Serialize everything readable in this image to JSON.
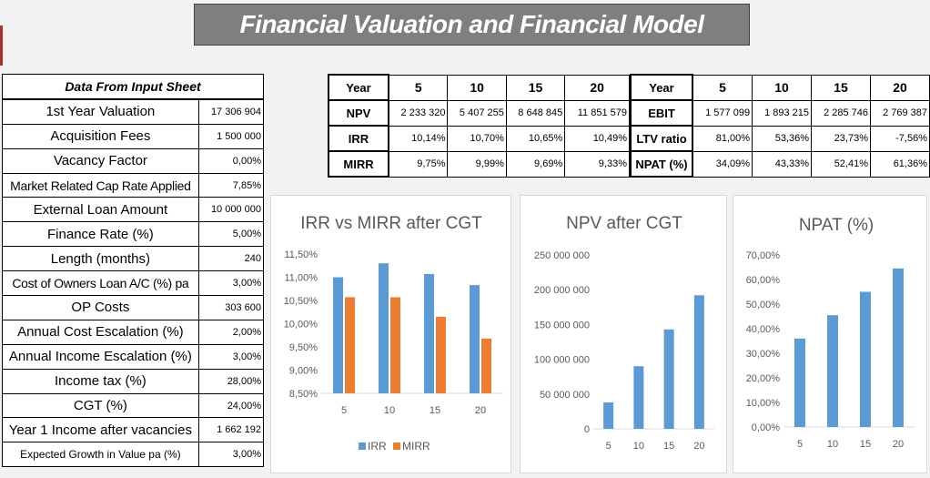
{
  "title": "Financial Valuation and Financial Model",
  "input_table": {
    "header": "Data From Input Sheet",
    "rows": [
      {
        "label": "1st Year Valuation",
        "value": "17 306 904"
      },
      {
        "label": "Acquisition Fees",
        "value": "1 500 000"
      },
      {
        "label": "Vacancy Factor",
        "value": "0,00%"
      },
      {
        "label": "Market Related Cap Rate Applied",
        "value": "7,85%"
      },
      {
        "label": "External Loan Amount",
        "value": "10 000 000"
      },
      {
        "label": "Finance Rate (%)",
        "value": "5,00%"
      },
      {
        "label": "Length (months)",
        "value": "240"
      },
      {
        "label": "Cost of Owners Loan A/C (%) pa",
        "value": "3,00%"
      },
      {
        "label": "OP Costs",
        "value": "303 600"
      },
      {
        "label": "Annual Cost Escalation (%)",
        "value": "2,00%"
      },
      {
        "label": "Annual Income Escalation (%)",
        "value": "3,00%"
      },
      {
        "label": "Income tax (%)",
        "value": "28,00%"
      },
      {
        "label": "CGT (%)",
        "value": "24,00%"
      },
      {
        "label": "Year 1 Income after vacancies",
        "value": "1 662 192"
      },
      {
        "label": "Expected Growth in Value pa (%)",
        "value": "3,00%"
      }
    ]
  },
  "results_left": {
    "year_label": "Year",
    "years": [
      "5",
      "10",
      "15",
      "20"
    ],
    "rows": [
      {
        "label": "NPV",
        "values": [
          "2 233 320",
          "5 407 255",
          "8 648 845",
          "11 851 579"
        ]
      },
      {
        "label": "IRR",
        "values": [
          "10,14%",
          "10,70%",
          "10,65%",
          "10,49%"
        ]
      },
      {
        "label": "MIRR",
        "values": [
          "9,75%",
          "9,99%",
          "9,69%",
          "9,33%"
        ]
      }
    ]
  },
  "results_right": {
    "year_label": "Year",
    "years": [
      "5",
      "10",
      "15",
      "20"
    ],
    "rows": [
      {
        "label": "EBIT",
        "values": [
          "1 577 099",
          "1 893 215",
          "2 285 746",
          "2 769 387"
        ]
      },
      {
        "label": "LTV ratio",
        "values": [
          "81,00%",
          "53,36%",
          "23,73%",
          "-7,56%"
        ]
      },
      {
        "label": "NPAT (%)",
        "values": [
          "34,09%",
          "43,33%",
          "52,41%",
          "61,36%"
        ]
      }
    ]
  },
  "colors": {
    "irr": "#5b9bd5",
    "mirr": "#ed7d31",
    "bar": "#5b9bd5",
    "title_bg": "#7f7f7f"
  },
  "chart_data": [
    {
      "type": "bar",
      "title": "IRR vs MIRR after CGT",
      "categories": [
        "5",
        "10",
        "15",
        "20"
      ],
      "series": [
        {
          "name": "IRR",
          "values": [
            11.0,
            11.3,
            11.07,
            10.83
          ]
        },
        {
          "name": "MIRR",
          "values": [
            10.57,
            10.57,
            10.15,
            9.68
          ]
        }
      ],
      "ylim": [
        8.5,
        11.5
      ],
      "yticks": [
        "11,50%",
        "11,00%",
        "10,50%",
        "10,00%",
        "9,50%",
        "9,00%",
        "8,50%"
      ],
      "ytick_values": [
        11.5,
        11.0,
        10.5,
        10.0,
        9.5,
        9.0,
        8.5
      ],
      "legend": "bottom"
    },
    {
      "type": "bar",
      "title": "NPV after CGT",
      "categories": [
        "5",
        "10",
        "15",
        "20"
      ],
      "values": [
        38000000,
        90000000,
        143000000,
        192000000
      ],
      "ylim": [
        0,
        250000000
      ],
      "yticks": [
        "250 000 000",
        "200 000 000",
        "150 000 000",
        "100 000 000",
        "50 000 000",
        "0"
      ],
      "ytick_values": [
        250000000,
        200000000,
        150000000,
        100000000,
        50000000,
        0
      ]
    },
    {
      "type": "bar",
      "title": "NPAT (%)",
      "categories": [
        "5",
        "10",
        "15",
        "20"
      ],
      "values": [
        36,
        45.5,
        55,
        64.5
      ],
      "ylim": [
        0,
        70
      ],
      "yticks": [
        "70,00%",
        "60,00%",
        "50,00%",
        "40,00%",
        "30,00%",
        "20,00%",
        "10,00%",
        "0,00%"
      ],
      "ytick_values": [
        70,
        60,
        50,
        40,
        30,
        20,
        10,
        0
      ]
    }
  ]
}
